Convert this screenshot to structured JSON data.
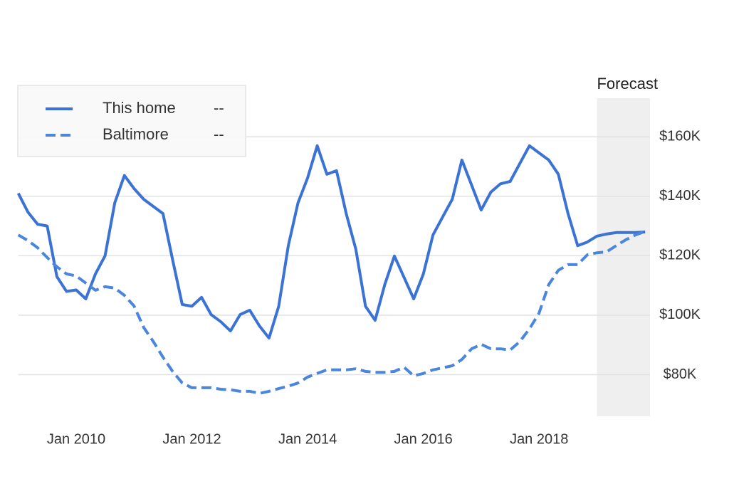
{
  "chart_data": {
    "type": "line",
    "x": [
      "2009-01",
      "2009-03",
      "2009-05",
      "2009-07",
      "2009-09",
      "2009-11",
      "2010-01",
      "2010-03",
      "2010-05",
      "2010-07",
      "2010-09",
      "2010-11",
      "2011-01",
      "2011-03",
      "2011-05",
      "2011-07",
      "2011-09",
      "2011-11",
      "2012-01",
      "2012-03",
      "2012-05",
      "2012-07",
      "2012-09",
      "2012-11",
      "2013-01",
      "2013-03",
      "2013-05",
      "2013-07",
      "2013-09",
      "2013-11",
      "2014-01",
      "2014-03",
      "2014-05",
      "2014-07",
      "2014-09",
      "2014-11",
      "2015-01",
      "2015-03",
      "2015-05",
      "2015-07",
      "2015-09",
      "2015-11",
      "2016-01",
      "2016-03",
      "2016-05",
      "2016-07",
      "2016-09",
      "2016-11",
      "2017-01",
      "2017-03",
      "2017-05",
      "2017-07",
      "2017-09",
      "2017-11",
      "2018-01",
      "2018-03",
      "2018-05",
      "2018-07",
      "2018-09",
      "2018-11",
      "2019-01",
      "2019-03",
      "2019-05",
      "2019-07",
      "2019-09",
      "2019-11"
    ],
    "series": [
      {
        "name": "This home",
        "legend_value": "--",
        "color": "#3a72d6",
        "dash": false,
        "values": [
          141000,
          134700,
          130600,
          130000,
          113000,
          108000,
          108500,
          105500,
          113900,
          120000,
          137800,
          147000,
          142600,
          139000,
          136600,
          134200,
          118700,
          103600,
          103000,
          106000,
          100200,
          97800,
          94700,
          100200,
          101700,
          96400,
          92300,
          103000,
          123400,
          137800,
          146200,
          157000,
          147400,
          148600,
          134200,
          122200,
          103000,
          98300,
          110300,
          119900,
          112700,
          105500,
          113900,
          127000,
          133000,
          139000,
          152200,
          143800,
          135400,
          141400,
          144200,
          145000,
          151000,
          157000,
          154600,
          152200,
          147400,
          134200,
          123400,
          124600,
          126600,
          127300,
          127800,
          127800,
          127800,
          128000
        ]
      },
      {
        "name": "Baltimore",
        "legend_value": "--",
        "color": "#4a86dc",
        "dash": true,
        "values": [
          127000,
          125100,
          122700,
          119400,
          116300,
          113900,
          113200,
          110800,
          108400,
          109600,
          109100,
          106700,
          103100,
          95900,
          91100,
          85900,
          81100,
          77200,
          75600,
          75600,
          75600,
          75100,
          74900,
          74400,
          74400,
          73700,
          74400,
          75300,
          76100,
          77200,
          79200,
          80400,
          81600,
          81600,
          81600,
          82000,
          81100,
          80800,
          80800,
          81100,
          82500,
          79600,
          80400,
          81600,
          82300,
          83000,
          85100,
          88700,
          90200,
          88700,
          88700,
          88300,
          91100,
          95400,
          100700,
          110300,
          115100,
          117000,
          117000,
          120300,
          121000,
          121300,
          123400,
          125400,
          127000,
          128200
        ]
      }
    ],
    "xlim": [
      "2009-01",
      "2019-12"
    ],
    "xticks": [
      {
        "value": "2010-01",
        "label": "Jan 2010"
      },
      {
        "value": "2012-01",
        "label": "Jan 2012"
      },
      {
        "value": "2014-01",
        "label": "Jan 2014"
      },
      {
        "value": "2016-01",
        "label": "Jan 2016"
      },
      {
        "value": "2018-01",
        "label": "Jan 2018"
      }
    ],
    "ylim": [
      66000,
      173000
    ],
    "yticks": [
      {
        "value": 80000,
        "label": "$80K"
      },
      {
        "value": 100000,
        "label": "$100K"
      },
      {
        "value": 120000,
        "label": "$120K"
      },
      {
        "value": 140000,
        "label": "$140K"
      },
      {
        "value": 160000,
        "label": "$160K"
      }
    ],
    "grid": true,
    "legend": "top-left",
    "forecast": {
      "label": "Forecast",
      "start": "2019-01"
    }
  }
}
